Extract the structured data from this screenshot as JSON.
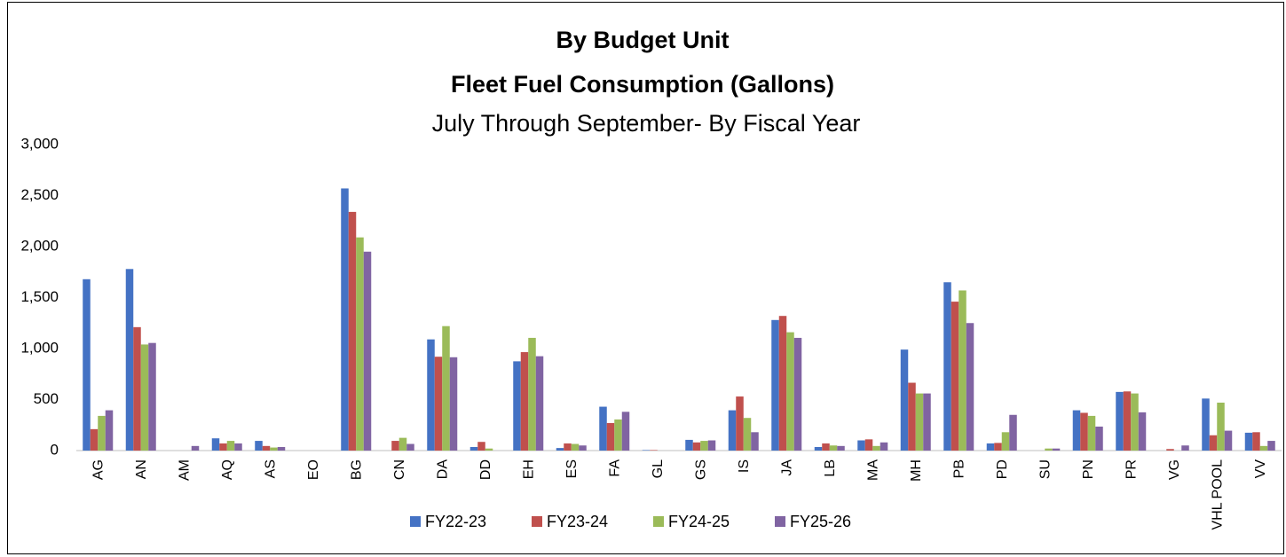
{
  "chart_data": {
    "type": "bar",
    "title": "By Budget Unit",
    "subtitle": "Fleet Fuel Consumption (Gallons)",
    "subtitle2": "July Through September- By Fiscal Year",
    "categories": [
      "AG",
      "AN",
      "AM",
      "AQ",
      "AS",
      "EO",
      "BG",
      "CN",
      "DA",
      "DD",
      "EH",
      "ES",
      "FA",
      "GL",
      "GS",
      "IS",
      "JA",
      "LB",
      "MA",
      "MH",
      "PB",
      "PD",
      "SU",
      "PN",
      "PR",
      "VG",
      "VHL POOL",
      "VV"
    ],
    "series": [
      {
        "name": "FY22-23",
        "color": "#4472c4",
        "values": [
          1680,
          1780,
          0,
          120,
          95,
          0,
          2570,
          0,
          1090,
          35,
          875,
          25,
          430,
          5,
          105,
          395,
          1280,
          35,
          100,
          990,
          1650,
          70,
          0,
          395,
          575,
          0,
          510,
          175
        ]
      },
      {
        "name": "FY23-24",
        "color": "#c0504d",
        "values": [
          210,
          1210,
          0,
          70,
          45,
          0,
          2340,
          95,
          920,
          85,
          965,
          70,
          270,
          5,
          80,
          530,
          1320,
          70,
          110,
          665,
          1460,
          75,
          0,
          370,
          580,
          15,
          150,
          180
        ]
      },
      {
        "name": "FY24-25",
        "color": "#9bbb59",
        "values": [
          340,
          1040,
          0,
          95,
          30,
          0,
          2090,
          125,
          1220,
          20,
          1105,
          65,
          305,
          0,
          95,
          320,
          1160,
          50,
          45,
          560,
          1570,
          180,
          20,
          340,
          560,
          0,
          470,
          45
        ]
      },
      {
        "name": "FY25-26",
        "color": "#8064a2",
        "values": [
          395,
          1055,
          45,
          70,
          35,
          0,
          1950,
          65,
          915,
          0,
          925,
          50,
          380,
          0,
          100,
          180,
          1105,
          45,
          80,
          560,
          1250,
          350,
          20,
          235,
          375,
          50,
          195,
          95
        ]
      }
    ],
    "ylim": [
      0,
      3000
    ],
    "yticks": [
      0,
      500,
      {
        "value": 1000,
        "label": "1,000"
      },
      {
        "value": 1500,
        "label": "1,500"
      },
      {
        "value": 2000,
        "label": "2,000"
      },
      {
        "value": 2500,
        "label": "2,500"
      },
      {
        "value": 3000,
        "label": "3,000"
      }
    ],
    "grid": false,
    "legend": "bottom"
  }
}
